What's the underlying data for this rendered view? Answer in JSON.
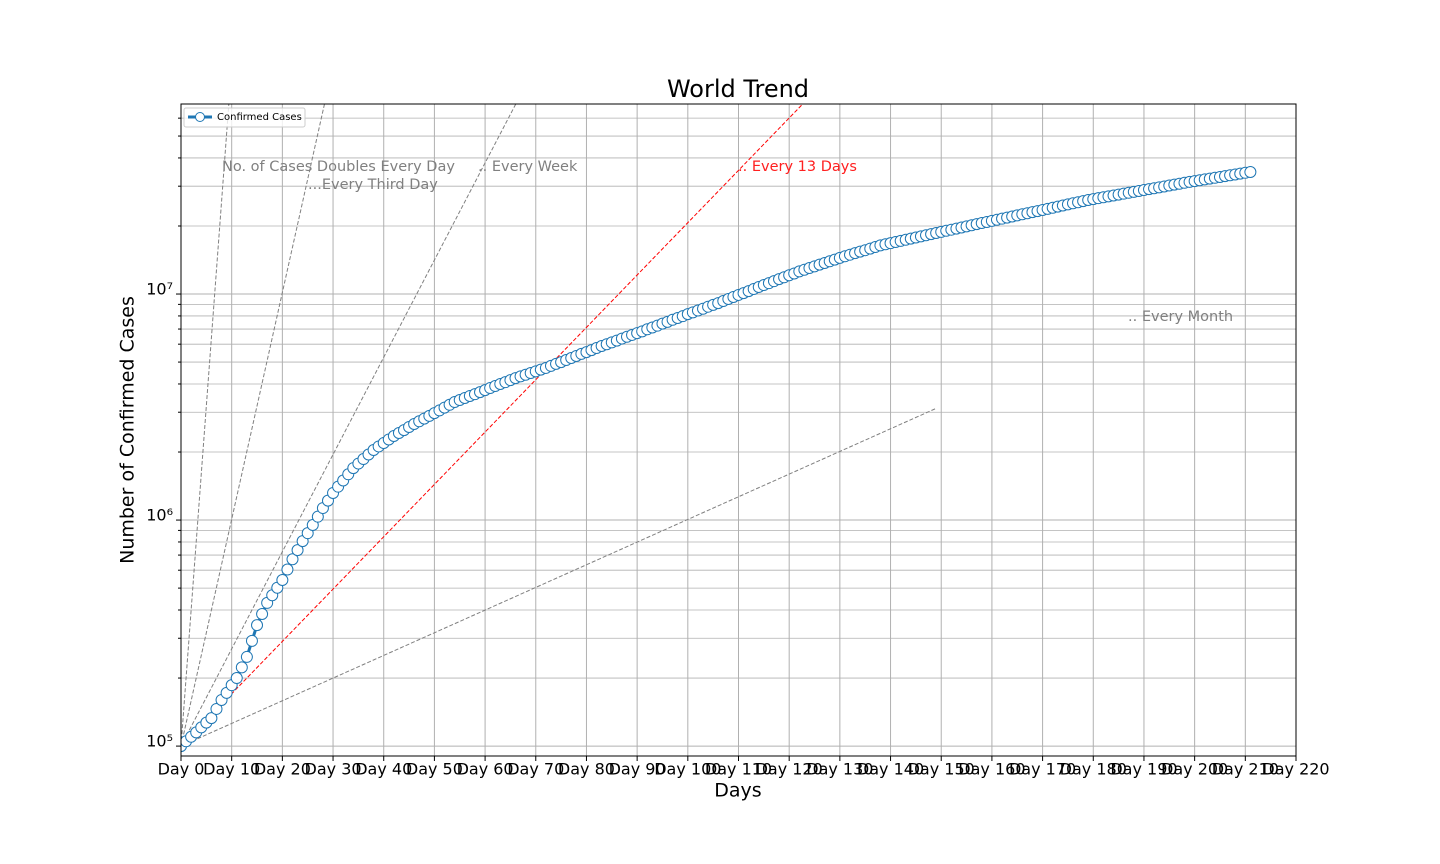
{
  "chart_data": {
    "type": "line",
    "title": "World Trend",
    "x_label": "Days",
    "y_label": "Number of Confirmed Cases",
    "yscale": "log",
    "grid": true,
    "legend_loc": "upper left",
    "xlim": [
      0,
      220
    ],
    "xticks": [
      {
        "value": 0,
        "label": "Day 0"
      },
      {
        "value": 10,
        "label": "Day 10"
      },
      {
        "value": 20,
        "label": "Day 20"
      },
      {
        "value": 30,
        "label": "Day 30"
      },
      {
        "value": 40,
        "label": "Day 40"
      },
      {
        "value": 50,
        "label": "Day 50"
      },
      {
        "value": 60,
        "label": "Day 60"
      },
      {
        "value": 70,
        "label": "Day 70"
      },
      {
        "value": 80,
        "label": "Day 80"
      },
      {
        "value": 90,
        "label": "Day 90"
      },
      {
        "value": 100,
        "label": "Day 100"
      },
      {
        "value": 110,
        "label": "Day 110"
      },
      {
        "value": 120,
        "label": "Day 120"
      },
      {
        "value": 130,
        "label": "Day 130"
      },
      {
        "value": 140,
        "label": "Day 140"
      },
      {
        "value": 150,
        "label": "Day 150"
      },
      {
        "value": 160,
        "label": "Day 160"
      },
      {
        "value": 170,
        "label": "Day 170"
      },
      {
        "value": 180,
        "label": "Day 180"
      },
      {
        "value": 190,
        "label": "Day 190"
      },
      {
        "value": 200,
        "label": "Day 200"
      },
      {
        "value": 210,
        "label": "Day 210"
      },
      {
        "value": 220,
        "label": "Day 220"
      }
    ],
    "ylim": [
      90400,
      69300000
    ],
    "yticks": [
      {
        "value": 100000,
        "label": "10⁵"
      },
      {
        "value": 1000000,
        "label": "10⁶"
      },
      {
        "value": 10000000,
        "label": "10⁷"
      }
    ],
    "yminorticks": [
      200000,
      300000,
      400000,
      500000,
      600000,
      700000,
      800000,
      900000,
      2000000,
      3000000,
      4000000,
      5000000,
      6000000,
      7000000,
      8000000,
      9000000,
      20000000,
      30000000,
      40000000,
      50000000,
      60000000
    ],
    "series": [
      {
        "name": "Confirmed Cases",
        "color": "#1f77b4",
        "marker": "circle",
        "marker_fill": "#ffffff",
        "x": [
          0,
          1,
          2,
          3,
          4,
          5,
          6,
          7,
          8,
          9,
          10,
          11,
          12,
          13,
          14,
          15,
          16,
          17,
          18,
          19,
          20,
          21,
          22,
          23,
          24,
          25,
          26,
          27,
          28,
          29,
          30,
          31,
          32,
          33,
          34,
          35,
          36,
          37,
          38,
          39,
          40,
          41,
          42,
          43,
          44,
          45,
          46,
          47,
          48,
          49,
          50,
          51,
          52,
          53,
          54,
          55,
          56,
          57,
          58,
          59,
          60,
          61,
          62,
          63,
          64,
          65,
          66,
          67,
          68,
          69,
          70,
          71,
          72,
          73,
          74,
          75,
          76,
          77,
          78,
          79,
          80,
          81,
          82,
          83,
          84,
          85,
          86,
          87,
          88,
          89,
          90,
          91,
          92,
          93,
          94,
          95,
          96,
          97,
          98,
          99,
          100,
          101,
          102,
          103,
          104,
          105,
          106,
          107,
          108,
          109,
          110,
          111,
          112,
          113,
          114,
          115,
          116,
          117,
          118,
          119,
          120,
          121,
          122,
          123,
          124,
          125,
          126,
          127,
          128,
          129,
          130,
          131,
          132,
          133,
          134,
          135,
          136,
          137,
          138,
          139,
          140,
          141,
          142,
          143,
          144,
          145,
          146,
          147,
          148,
          149,
          150,
          151,
          152,
          153,
          154,
          155,
          156,
          157,
          158,
          159,
          160,
          161,
          162,
          163,
          164,
          165,
          166,
          167,
          168,
          169,
          170,
          171,
          172,
          173,
          174,
          175,
          176,
          177,
          178,
          179,
          180,
          181,
          182,
          183,
          184,
          185,
          186,
          187,
          188,
          189,
          190,
          191,
          192,
          193,
          194,
          195,
          196,
          197,
          198,
          199,
          200,
          201,
          202,
          203,
          204,
          205,
          206,
          207,
          208,
          209,
          210,
          211
        ],
        "values": [
          100000,
          105000,
          110000,
          115000,
          121000,
          127000,
          133000,
          146000,
          160000,
          172000,
          186000,
          200000,
          223000,
          248000,
          292000,
          343000,
          384000,
          430000,
          465000,
          502000,
          543000,
          604000,
          671000,
          736000,
          807000,
          875000,
          951000,
          1035000,
          1130000,
          1219000,
          1318000,
          1405000,
          1496000,
          1594000,
          1698000,
          1778000,
          1862000,
          1950000,
          2042000,
          2117000,
          2193000,
          2273000,
          2355000,
          2427000,
          2500000,
          2582000,
          2661000,
          2735000,
          2812000,
          2891000,
          2972000,
          3055000,
          3145000,
          3236000,
          3327000,
          3396000,
          3467000,
          3540000,
          3606000,
          3681000,
          3758000,
          3837000,
          3917000,
          3999000,
          4074000,
          4159000,
          4246000,
          4321000,
          4395000,
          4472000,
          4550000,
          4629000,
          4710000,
          4808000,
          4909000,
          5000000,
          5105000,
          5212000,
          5321000,
          5433000,
          5534000,
          5649000,
          5768000,
          5888000,
          5998000,
          6109000,
          6223000,
          6353000,
          6471000,
          6592000,
          6714000,
          6839000,
          6982000,
          7112000,
          7244000,
          7396000,
          7534000,
          7691000,
          7834000,
          7980000,
          8147000,
          8299000,
          8453000,
          8610000,
          8790000,
          8954000,
          9120000,
          9311000,
          9506000,
          9705000,
          9908000,
          10090000,
          10300000,
          10520000,
          10740000,
          10960000,
          11170000,
          11400000,
          11640000,
          11860000,
          12110000,
          12330000,
          12590000,
          12810000,
          13030000,
          13260000,
          13490000,
          13720000,
          13960000,
          14200000,
          14450000,
          14690000,
          14930000,
          15170000,
          15400000,
          15630000,
          15890000,
          16140000,
          16410000,
          16600000,
          16790000,
          16980000,
          17180000,
          17380000,
          17580000,
          17780000,
          17990000,
          18200000,
          18410000,
          18620000,
          18830000,
          19050000,
          19260000,
          19480000,
          19700000,
          19920000,
          20150000,
          20380000,
          20610000,
          20840000,
          21080000,
          21310000,
          21550000,
          21790000,
          22030000,
          22280000,
          22530000,
          22780000,
          23030000,
          23280000,
          23550000,
          23820000,
          24090000,
          24360000,
          24640000,
          24920000,
          25200000,
          25480000,
          25770000,
          26060000,
          26300000,
          26550000,
          26790000,
          27040000,
          27290000,
          27540000,
          27800000,
          28050000,
          28310000,
          28580000,
          28840000,
          29110000,
          29380000,
          29650000,
          29920000,
          30200000,
          30480000,
          30760000,
          31050000,
          31330000,
          31600000,
          31870000,
          32140000,
          32410000,
          32680000,
          32960000,
          33240000,
          33520000,
          33810000,
          34100000,
          34390000,
          34670000
        ]
      }
    ],
    "reference_lines": [
      {
        "color": "#808080",
        "linestyle": "dashed",
        "x": [
          0,
          10
        ],
        "values": [
          100000,
          102400000
        ]
      },
      {
        "color": "#808080",
        "linestyle": "dashed",
        "x": [
          0,
          30
        ],
        "values": [
          100000,
          102400000
        ]
      },
      {
        "color": "#808080",
        "linestyle": "dashed",
        "x": [
          0,
          70
        ],
        "values": [
          100000,
          102400000
        ]
      },
      {
        "color": "#ff0000",
        "linestyle": "dashed",
        "x": [
          0,
          130
        ],
        "values": [
          100000,
          102400000
        ]
      },
      {
        "color": "#808080",
        "linestyle": "dashed",
        "x": [
          0,
          149
        ],
        "values": [
          100000,
          3120000
        ]
      }
    ],
    "annotations": [
      {
        "text": "No. of Cases Doubles Every Day",
        "color": "#808080"
      },
      {
        "text": "...Every Third Day",
        "color": "#808080"
      },
      {
        "text": ".. Every Week",
        "color": "#808080"
      },
      {
        "text": ".. Every 13 Days",
        "color": "#ff2020"
      },
      {
        "text": ".. Every Month",
        "color": "#808080"
      }
    ]
  }
}
